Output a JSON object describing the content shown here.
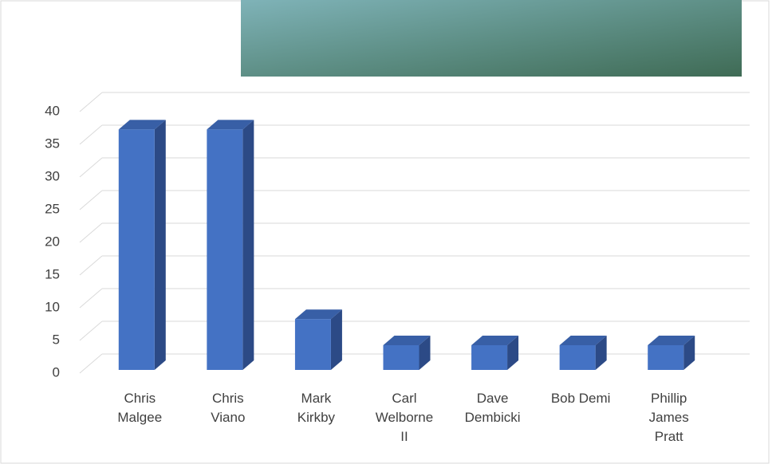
{
  "chart_data": {
    "type": "bar3d",
    "categories": [
      "Chris Malgee",
      "Chris Viano",
      "Mark Kirkby",
      "Carl Welborne II",
      "Dave Dembicki",
      "Bob Demi",
      "Phillip James Pratt"
    ],
    "values": [
      38,
      38,
      9,
      5,
      5,
      5,
      5
    ],
    "color": "#4472c4",
    "ylim": [
      0,
      40
    ],
    "yticks": [
      0,
      5,
      10,
      15,
      20,
      25,
      30,
      35,
      40
    ],
    "grid": true
  }
}
